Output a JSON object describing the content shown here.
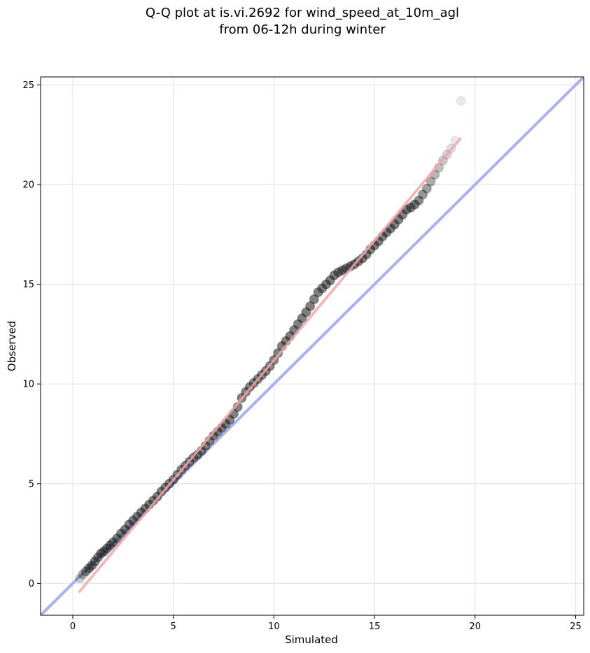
{
  "chart_data": {
    "type": "scatter",
    "title": [
      "Q-Q plot at is.vi.2692 for wind_speed_at_10m_agl",
      "from 06-12h during winter"
    ],
    "xlabel": "Simulated",
    "ylabel": "Observed",
    "xlim": [
      -1.6,
      25.4
    ],
    "ylim": [
      -1.6,
      25.4
    ],
    "xticks": [
      0,
      5,
      10,
      15,
      20,
      25
    ],
    "yticks": [
      0,
      5,
      10,
      15,
      20,
      25
    ],
    "grid": true,
    "colors": {
      "points": "#1a1a1a",
      "identity_line": "#aab0f4",
      "fit_line": "#f4a5a5"
    },
    "identity_line": {
      "x": [
        -1.6,
        25.4
      ],
      "y": [
        -1.6,
        25.4
      ]
    },
    "fit_line": {
      "x": [
        0.3,
        19.3
      ],
      "y": [
        -0.45,
        22.35
      ]
    },
    "points": {
      "x": [
        0.35,
        0.5,
        0.65,
        0.8,
        0.95,
        1.1,
        1.25,
        1.4,
        1.55,
        1.7,
        1.85,
        2.0,
        2.2,
        2.4,
        2.6,
        2.8,
        3.0,
        3.2,
        3.4,
        3.6,
        3.8,
        4.0,
        4.2,
        4.4,
        4.6,
        4.8,
        5.0,
        5.2,
        5.4,
        5.6,
        5.8,
        6.0,
        6.2,
        6.4,
        6.6,
        6.8,
        7.0,
        7.2,
        7.4,
        7.6,
        7.8,
        8.0,
        8.2,
        8.4,
        8.6,
        8.8,
        9.0,
        9.2,
        9.4,
        9.6,
        9.8,
        10.0,
        10.2,
        10.4,
        10.6,
        10.8,
        11.0,
        11.2,
        11.4,
        11.6,
        11.8,
        12.0,
        12.2,
        12.4,
        12.6,
        12.8,
        13.0,
        13.2,
        13.4,
        13.6,
        13.8,
        14.0,
        14.2,
        14.4,
        14.6,
        14.8,
        15.0,
        15.2,
        15.4,
        15.6,
        15.8,
        16.0,
        16.2,
        16.4,
        16.6,
        16.8,
        17.0,
        17.2,
        17.4,
        17.6,
        17.8,
        18.0,
        18.2,
        18.4,
        18.6,
        18.8,
        19.0,
        19.3
      ],
      "y": [
        0.25,
        0.45,
        0.6,
        0.75,
        0.9,
        1.1,
        1.3,
        1.5,
        1.6,
        1.75,
        1.9,
        2.05,
        2.25,
        2.5,
        2.7,
        2.95,
        3.15,
        3.35,
        3.55,
        3.75,
        3.95,
        4.15,
        4.35,
        4.6,
        4.8,
        5.0,
        5.2,
        5.45,
        5.7,
        5.9,
        6.1,
        6.3,
        6.45,
        6.65,
        6.9,
        7.15,
        7.4,
        7.6,
        7.8,
        8.0,
        8.2,
        8.5,
        8.85,
        9.3,
        9.6,
        9.85,
        10.05,
        10.25,
        10.45,
        10.65,
        10.9,
        11.2,
        11.55,
        11.9,
        12.15,
        12.4,
        12.7,
        13.0,
        13.3,
        13.6,
        13.9,
        14.25,
        14.6,
        14.8,
        15.0,
        15.2,
        15.45,
        15.6,
        15.7,
        15.8,
        15.9,
        16.0,
        16.15,
        16.3,
        16.5,
        16.75,
        16.95,
        17.15,
        17.4,
        17.6,
        17.8,
        18.0,
        18.25,
        18.5,
        18.75,
        18.85,
        19.0,
        19.2,
        19.5,
        19.8,
        20.15,
        20.5,
        20.85,
        21.2,
        21.5,
        21.8,
        22.2,
        24.2
      ]
    }
  }
}
